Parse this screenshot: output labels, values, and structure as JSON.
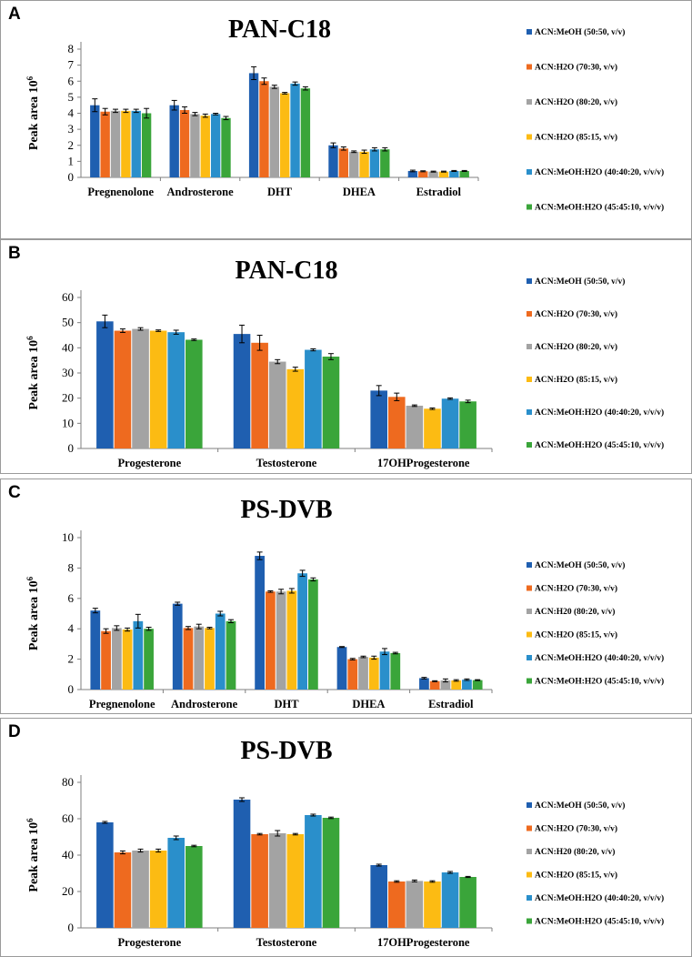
{
  "figure": {
    "series_names": [
      "ACN:MeOH (50:50, v/v)",
      "ACN:H2O (70:30, v/v)",
      "ACN:H2O (80:20, v/v)",
      "ACN:H2O (85:15, v/v)",
      "ACN:MeOH:H2O (40:40:20, v/v/v)",
      "ACN:MeOH:H2O (45:45:10, v/v/v)"
    ],
    "series_colors": [
      "#1f5fb0",
      "#ee6a1f",
      "#a3a3a3",
      "#fcbb13",
      "#2a8fcb",
      "#3aa53a"
    ]
  },
  "chart_data": [
    {
      "panel": "A",
      "type": "bar",
      "title": "PAN-C18",
      "ylabel": "Peak area",
      "yunit": "10",
      "yunit_exp": "6",
      "ylim": [
        0,
        8
      ],
      "yticks": [
        "0",
        "1",
        "2",
        "3",
        "4",
        "5",
        "6",
        "7",
        "8"
      ],
      "categories": [
        "Pregnenolone",
        "Androsterone",
        "DHT",
        "DHEA",
        "Estradiol"
      ],
      "legend": [
        "ACN:MeOH (50:50, v/v)",
        "ACN:H2O (70:30, v/v)",
        "ACN:H2O (80:20, v/v)",
        "ACN:H2O (85:15, v/v)",
        "ACN:MeOH:H2O (40:40:20, v/v/v)",
        "ACN:MeOH:H2O (45:45:10, v/v/v)"
      ],
      "series": [
        {
          "name": "ACN:MeOH (50:50, v/v)",
          "values": [
            4.5,
            4.5,
            6.5,
            2.0,
            0.4
          ],
          "errors": [
            0.4,
            0.3,
            0.4,
            0.15,
            0.05
          ]
        },
        {
          "name": "ACN:H2O (70:30, v/v)",
          "values": [
            4.1,
            4.2,
            6.0,
            1.8,
            0.38
          ],
          "errors": [
            0.2,
            0.2,
            0.2,
            0.1,
            0.03
          ]
        },
        {
          "name": "ACN:H2O (80:20, v/v)",
          "values": [
            4.15,
            3.95,
            5.65,
            1.6,
            0.36
          ],
          "errors": [
            0.1,
            0.1,
            0.1,
            0.05,
            0.03
          ]
        },
        {
          "name": "ACN:H2O (85:15, v/v)",
          "values": [
            4.15,
            3.85,
            5.25,
            1.6,
            0.36
          ],
          "errors": [
            0.1,
            0.1,
            0.05,
            0.1,
            0.03
          ]
        },
        {
          "name": "ACN:MeOH:H2O (40:40:20, v/v/v)",
          "values": [
            4.15,
            3.95,
            5.85,
            1.75,
            0.4
          ],
          "errors": [
            0.1,
            0.05,
            0.1,
            0.1,
            0.03
          ]
        },
        {
          "name": "ACN:MeOH:H2O (45:45:10, v/v/v)",
          "values": [
            4.0,
            3.7,
            5.55,
            1.75,
            0.4
          ],
          "errors": [
            0.3,
            0.1,
            0.1,
            0.1,
            0.03
          ]
        }
      ]
    },
    {
      "panel": "B",
      "type": "bar",
      "title": "PAN-C18",
      "ylabel": "Peak area",
      "yunit": "10",
      "yunit_exp": "6",
      "ylim": [
        0,
        60
      ],
      "yticks": [
        "0",
        "10",
        "20",
        "30",
        "40",
        "50",
        "60"
      ],
      "categories": [
        "Progesterone",
        "Testosterone",
        "17OHProgesterone"
      ],
      "legend": [
        "ACN:MeOH (50:50, v/v)",
        "ACN:H2O (70:30, v/v)",
        "ACN:H2O (80:20, v/v)",
        "ACN:H2O (85:15, v/v)",
        "ACN:MeOH:H2O (40:40:20, v/v/v)",
        "ACN:MeOH:H2O (45:45:10, v/v/v)"
      ],
      "series": [
        {
          "name": "ACN:MeOH (50:50, v/v)",
          "values": [
            50.5,
            45.5,
            23.0
          ],
          "errors": [
            2.5,
            3.5,
            2.0
          ]
        },
        {
          "name": "ACN:H2O (70:30, v/v)",
          "values": [
            46.8,
            42.0,
            20.5
          ],
          "errors": [
            0.7,
            3.0,
            1.5
          ]
        },
        {
          "name": "ACN:H2O (80:20, v/v)",
          "values": [
            47.5,
            34.5,
            17.0
          ],
          "errors": [
            0.5,
            0.8,
            0.3
          ]
        },
        {
          "name": "ACN:H2O (85:15, v/v)",
          "values": [
            46.8,
            31.5,
            15.8
          ],
          "errors": [
            0.3,
            0.8,
            0.3
          ]
        },
        {
          "name": "ACN:MeOH:H2O (40:40:20, v/v/v)",
          "values": [
            46.2,
            39.2,
            19.8
          ],
          "errors": [
            0.8,
            0.4,
            0.3
          ]
        },
        {
          "name": "ACN:MeOH:H2O (45:45:10, v/v/v)",
          "values": [
            43.2,
            36.5,
            18.7
          ],
          "errors": [
            0.3,
            1.2,
            0.5
          ]
        }
      ]
    },
    {
      "panel": "C",
      "type": "bar",
      "title": "PS-DVB",
      "ylabel": "Peak area",
      "yunit": "10",
      "yunit_exp": "6",
      "ylim": [
        0,
        10
      ],
      "yticks": [
        "0",
        "2",
        "4",
        "6",
        "8",
        "10"
      ],
      "categories": [
        "Pregnenolone",
        "Androsterone",
        "DHT",
        "DHEA",
        "Estradiol"
      ],
      "legend": [
        "ACN:MeOH (50:50, v/v)",
        "ACN:H2O (70:30, v/v)",
        "ACN:H20 (80:20, v/v)",
        "ACN:H2O (85:15, v/v)",
        "ACN:MeOH:H2O (40:40:20, v/v/v)",
        "ACN:MeOH:H2O (45:45:10, v/v/v)"
      ],
      "series": [
        {
          "name": "ACN:MeOH (50:50, v/v)",
          "values": [
            5.2,
            5.65,
            8.8,
            2.8,
            0.75
          ],
          "errors": [
            0.15,
            0.1,
            0.25,
            0.03,
            0.05
          ]
        },
        {
          "name": "ACN:H2O (70:30, v/v)",
          "values": [
            3.85,
            4.05,
            6.45,
            2.0,
            0.55
          ],
          "errors": [
            0.15,
            0.1,
            0.05,
            0.05,
            0.03
          ]
        },
        {
          "name": "ACN:H20 (80:20, v/v)",
          "values": [
            4.05,
            4.15,
            6.45,
            2.15,
            0.6
          ],
          "errors": [
            0.15,
            0.15,
            0.15,
            0.05,
            0.1
          ]
        },
        {
          "name": "ACN:H2O (85:15, v/v)",
          "values": [
            3.95,
            4.05,
            6.5,
            2.1,
            0.6
          ],
          "errors": [
            0.1,
            0.05,
            0.15,
            0.1,
            0.05
          ]
        },
        {
          "name": "ACN:MeOH:H2O (40:40:20, v/v/v)",
          "values": [
            4.5,
            5.0,
            7.65,
            2.5,
            0.65
          ],
          "errors": [
            0.45,
            0.15,
            0.2,
            0.2,
            0.05
          ]
        },
        {
          "name": "ACN:MeOH:H2O (45:45:10, v/v/v)",
          "values": [
            4.0,
            4.5,
            7.25,
            2.4,
            0.62
          ],
          "errors": [
            0.1,
            0.1,
            0.1,
            0.05,
            0.03
          ]
        }
      ]
    },
    {
      "panel": "D",
      "type": "bar",
      "title": "PS-DVB",
      "ylabel": "Peak area",
      "yunit": "10",
      "yunit_exp": "6",
      "ylim": [
        0,
        80
      ],
      "yticks": [
        "0",
        "20",
        "40",
        "60",
        "80"
      ],
      "categories": [
        "Progesterone",
        "Testosterone",
        "17OHProgesterone"
      ],
      "legend": [
        "ACN:MeOH (50:50, v/v)",
        "ACN:H2O (70:30, v/v)",
        "ACN:H20 (80:20, v/v)",
        "ACN:H2O (85:15, v/v)",
        "ACN:MeOH:H2O (40:40:20, v/v/v)",
        "ACN:MeOH:H2O (45:45:10, v/v/v)"
      ],
      "series": [
        {
          "name": "ACN:MeOH (50:50, v/v)",
          "values": [
            58.0,
            70.5,
            34.5
          ],
          "errors": [
            0.5,
            1.0,
            0.5
          ]
        },
        {
          "name": "ACN:H2O (70:30, v/v)",
          "values": [
            41.5,
            51.5,
            25.5
          ],
          "errors": [
            0.8,
            0.4,
            0.4
          ]
        },
        {
          "name": "ACN:H20 (80:20, v/v)",
          "values": [
            42.5,
            52.0,
            25.8
          ],
          "errors": [
            0.8,
            1.5,
            0.5
          ]
        },
        {
          "name": "ACN:H2O (85:15, v/v)",
          "values": [
            42.5,
            51.5,
            25.5
          ],
          "errors": [
            0.8,
            0.4,
            0.4
          ]
        },
        {
          "name": "ACN:MeOH:H2O (40:40:20, v/v/v)",
          "values": [
            49.5,
            62.0,
            30.5
          ],
          "errors": [
            1.0,
            0.5,
            0.5
          ]
        },
        {
          "name": "ACN:MeOH:H2O (45:45:10, v/v/v)",
          "values": [
            45.0,
            60.5,
            28.0
          ],
          "errors": [
            0.4,
            0.4,
            0.3
          ]
        }
      ]
    }
  ]
}
